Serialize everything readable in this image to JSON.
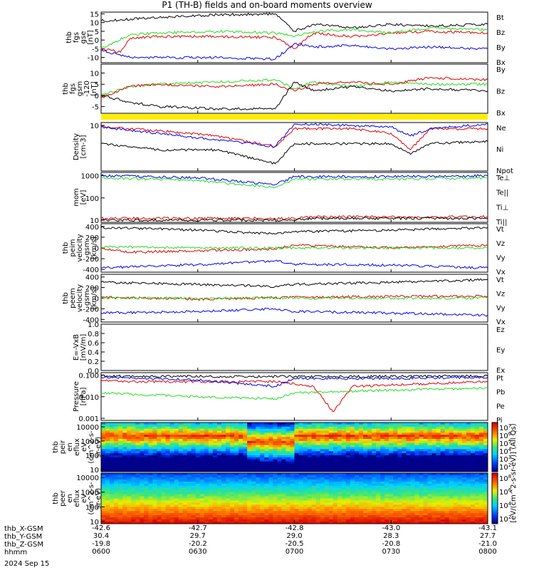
{
  "title": "P1 (TH-B) fields and on-board moments overview",
  "footer": {
    "row_labels": [
      "thb_X-GSM",
      "thb_Y-GSM",
      "thb_Z-GSM",
      "hhmm"
    ],
    "date": "2024 Sep 15",
    "columns": [
      {
        "x": "-42.6",
        "y": "30.4",
        "z": "-19.8",
        "t": "0600"
      },
      {
        "x": "-42.7",
        "y": "29.7",
        "z": "-20.2",
        "t": "0630"
      },
      {
        "x": "-42.8",
        "y": "29.0",
        "z": "-20.5",
        "t": "0700"
      },
      {
        "x": "-43.0",
        "y": "28.3",
        "z": "-20.8",
        "t": "0730"
      },
      {
        "x": "-43.1",
        "y": "27.7",
        "z": "-21.0",
        "t": "0800"
      }
    ]
  },
  "colors": {
    "black": "#000000",
    "red": "#e00000",
    "green": "#22dd22",
    "blue": "#0000ee",
    "yellow": "#ffee00"
  },
  "chart_data": {
    "type": "line",
    "x_range": [
      "0600",
      "0800"
    ],
    "panels": [
      {
        "id": "fgs_gse",
        "ylabel": [
          "thb",
          "fgs",
          "gse",
          "[nT]"
        ],
        "ylim": [
          -13,
          16
        ],
        "yticks": [
          "-10",
          "-5",
          "0",
          "5",
          "10",
          "15"
        ],
        "ytick_values": [
          -10,
          -5,
          0,
          5,
          10,
          15
        ],
        "series": [
          {
            "name": "Bt",
            "color": "black",
            "x": [
              6.0,
              6.3,
              6.6,
              6.9,
              7.0,
              7.1,
              7.3,
              7.5,
              7.7,
              8.0
            ],
            "y": [
              11,
              13,
              14.5,
              15,
              5,
              9,
              7,
              9,
              8,
              9
            ]
          },
          {
            "name": "Bz",
            "color": "red",
            "x": [
              6.0,
              6.1,
              6.15,
              6.3,
              6.6,
              6.9,
              7.0,
              7.1,
              7.3,
              7.5,
              7.7,
              8.0
            ],
            "y": [
              -5,
              -7,
              1,
              2,
              2,
              1.5,
              -5,
              4,
              2,
              4,
              5,
              4
            ]
          },
          {
            "name": "By",
            "color": "green",
            "x": [
              6.0,
              6.15,
              6.3,
              6.6,
              6.9,
              7.0,
              7.1,
              7.3,
              7.5,
              7.7,
              8.0
            ],
            "y": [
              -5,
              3,
              4,
              5,
              4,
              2,
              5,
              6,
              4,
              7,
              6
            ]
          },
          {
            "name": "Bx",
            "color": "blue",
            "x": [
              6.0,
              6.15,
              6.3,
              6.6,
              6.9,
              7.0,
              7.1,
              7.3,
              7.5,
              7.7,
              8.0
            ],
            "y": [
              -6,
              -10,
              -10,
              -10,
              -11,
              -2,
              -4,
              -3,
              -5,
              -4,
              -5
            ]
          }
        ]
      },
      {
        "id": "fgs_gsm",
        "ylabel": [
          "thb",
          "fgs",
          "gsm",
          "-120",
          "[nT]"
        ],
        "ylim": [
          -8,
          14
        ],
        "yticks": [
          "-5",
          "0",
          "5",
          "10"
        ],
        "ytick_values": [
          -5,
          0,
          5,
          10
        ],
        "series": [
          {
            "name": "By",
            "color": "green",
            "x": [
              6.0,
              6.15,
              6.3,
              6.6,
              6.9,
              7.0,
              7.1,
              7.3,
              7.5,
              7.7,
              8.0
            ],
            "y": [
              0,
              4,
              5,
              6,
              7,
              3,
              6,
              4,
              6,
              5,
              5
            ]
          },
          {
            "name": "Bz",
            "color": "red",
            "x": [
              6.0,
              6.15,
              6.3,
              6.6,
              6.9,
              7.0,
              7.1,
              7.3,
              7.5,
              7.7,
              8.0
            ],
            "y": [
              -1,
              4,
              5,
              4,
              5,
              2,
              5,
              6,
              5,
              8,
              7
            ]
          },
          {
            "name": "Bx",
            "color": "black",
            "x": [
              6.0,
              6.15,
              6.3,
              6.6,
              6.9,
              7.0,
              7.1,
              7.3,
              7.5,
              7.7,
              8.0
            ],
            "y": [
              0,
              -3,
              -5,
              -6,
              -6,
              6,
              2,
              4,
              2,
              3,
              2
            ]
          }
        ]
      },
      {
        "id": "density",
        "ylabel": [
          "Density",
          "[cm-3]"
        ],
        "yscale": "log",
        "ylim": [
          0.5,
          12
        ],
        "yticks": [
          "10"
        ],
        "ytick_values": [
          10
        ],
        "series": [
          {
            "name": "Ne",
            "color": "red",
            "x": [
              6.0,
              6.3,
              6.6,
              6.9,
              7.0,
              7.1,
              7.3,
              7.5,
              7.6,
              7.7,
              8.0
            ],
            "y": [
              9,
              7,
              5,
              2.5,
              8,
              8,
              8,
              6,
              2,
              8,
              8
            ]
          },
          {
            "name": "Ni",
            "color": "black",
            "x": [
              6.0,
              6.3,
              6.6,
              6.9,
              7.0,
              7.1,
              7.3,
              7.5,
              7.6,
              7.7,
              8.0
            ],
            "y": [
              3,
              2,
              2,
              0.8,
              3,
              3,
              3,
              3,
              1.5,
              3,
              3.5
            ]
          },
          {
            "name": "Npot",
            "color": "blue",
            "x": [
              6.0,
              6.9,
              7.0,
              7.5,
              7.6,
              7.7,
              8.0
            ],
            "y": [
              9,
              2.5,
              11,
              9,
              5,
              8,
              11
            ]
          }
        ]
      },
      {
        "id": "moms_temp",
        "ylabel": [
          "mom",
          "[eV]"
        ],
        "yscale": "log",
        "ylim": [
          8,
          1400
        ],
        "yticks": [
          "10",
          "100",
          "1000"
        ],
        "ytick_values": [
          10,
          100,
          1000
        ],
        "series": [
          {
            "name": "Te⊥",
            "color": "red",
            "x": [
              6.0,
              7.0,
              7.1,
              8.0
            ],
            "y": [
              12,
              12,
              14,
              14
            ]
          },
          {
            "name": "Te||",
            "color": "black",
            "x": [
              6.0,
              7.0,
              7.1,
              8.0
            ],
            "y": [
              10,
              10,
              12,
              12
            ]
          },
          {
            "name": "Ti⊥",
            "color": "blue",
            "x": [
              6.0,
              6.5,
              6.9,
              7.0,
              7.5,
              8.0
            ],
            "y": [
              1000,
              800,
              400,
              900,
              900,
              1000
            ]
          },
          {
            "name": "Ti||",
            "color": "green",
            "x": [
              6.0,
              6.5,
              6.9,
              7.0,
              7.5,
              8.0
            ],
            "y": [
              800,
              600,
              300,
              700,
              700,
              800
            ]
          }
        ]
      },
      {
        "id": "peim_velocity",
        "ylabel": [
          "thb",
          "peim",
          "velocity",
          "gsm",
          "[km/s]"
        ],
        "ylim": [
          -450,
          450
        ],
        "yticks": [
          "-400",
          "-200",
          "0",
          "200",
          "400"
        ],
        "ytick_values": [
          -400,
          -200,
          0,
          200,
          400
        ],
        "series": [
          {
            "name": "Vt",
            "color": "black",
            "x": [
              6.0,
              6.5,
              6.9,
              7.0,
              7.5,
              8.0
            ],
            "y": [
              380,
              330,
              260,
              300,
              330,
              380
            ]
          },
          {
            "name": "Vz",
            "color": "red",
            "x": [
              6.0,
              6.15,
              6.5,
              6.9,
              7.0,
              7.5,
              8.0
            ],
            "y": [
              0,
              -80,
              -50,
              -20,
              50,
              0,
              50
            ]
          },
          {
            "name": "Vy",
            "color": "green",
            "x": [
              6.0,
              6.5,
              7.0,
              8.0
            ],
            "y": [
              20,
              0,
              0,
              0
            ]
          },
          {
            "name": "Vx",
            "color": "blue",
            "x": [
              6.0,
              6.5,
              6.9,
              7.0,
              7.5,
              8.0
            ],
            "y": [
              -370,
              -310,
              -240,
              -300,
              -320,
              -370
            ]
          }
        ]
      },
      {
        "id": "peem_velocity",
        "ylabel": [
          "thb",
          "peem",
          "velocity",
          "gsm",
          "[km/s]"
        ],
        "ylim": [
          -450,
          450
        ],
        "yticks": [
          "-400",
          "-200",
          "0",
          "200",
          "400"
        ],
        "ytick_values": [
          -400,
          -200,
          0,
          200,
          400
        ],
        "series": [
          {
            "name": "Vt",
            "color": "black",
            "x": [
              6.0,
              6.5,
              6.9,
              7.0,
              7.5,
              8.0
            ],
            "y": [
              300,
              260,
              220,
              260,
              300,
              350
            ]
          },
          {
            "name": "Vz",
            "color": "red",
            "x": [
              6.0,
              6.5,
              7.0,
              8.0
            ],
            "y": [
              20,
              -20,
              20,
              40
            ]
          },
          {
            "name": "Vy",
            "color": "green",
            "x": [
              6.0,
              7.0,
              8.0
            ],
            "y": [
              0,
              0,
              0
            ]
          },
          {
            "name": "Vx",
            "color": "blue",
            "x": [
              6.0,
              6.5,
              6.9,
              7.0,
              7.5,
              8.0
            ],
            "y": [
              -280,
              -250,
              -200,
              -250,
              -280,
              -320
            ]
          }
        ]
      },
      {
        "id": "efield",
        "ylabel": [
          "E=-VxB",
          "[mV/m]"
        ],
        "ylim": [
          0.0,
          1.0
        ],
        "yticks": [
          "0.0",
          "0.2",
          "0.4",
          "0.6",
          "0.8",
          "1.0"
        ],
        "ytick_values": [
          0.0,
          0.2,
          0.4,
          0.6,
          0.8,
          1.0
        ],
        "series": [
          {
            "name": "Ez",
            "color": "red",
            "x": [],
            "y": []
          },
          {
            "name": "Ey",
            "color": "green",
            "x": [],
            "y": []
          },
          {
            "name": "Ex",
            "color": "blue",
            "x": [],
            "y": []
          }
        ]
      },
      {
        "id": "pressure",
        "ylabel": [
          "Pressure",
          "[nPa]"
        ],
        "yscale": "log",
        "ylim": [
          0.0008,
          0.13
        ],
        "yticks": [
          "0.001",
          "0.010",
          "0.100"
        ],
        "ytick_values": [
          0.001,
          0.01,
          0.1
        ],
        "series": [
          {
            "name": "Pt",
            "color": "black",
            "x": [
              6.0,
              7.0,
              8.0
            ],
            "y": [
              0.09,
              0.085,
              0.09
            ]
          },
          {
            "name": "Pb",
            "color": "red",
            "x": [
              6.0,
              6.15,
              6.9,
              7.0,
              7.1,
              7.2,
              7.3,
              8.0
            ],
            "y": [
              0.06,
              0.05,
              0.05,
              0.04,
              0.03,
              0.002,
              0.03,
              0.05
            ]
          },
          {
            "name": "Pe",
            "color": "green",
            "x": [
              6.0,
              6.5,
              6.9,
              7.0,
              7.5,
              8.0
            ],
            "y": [
              0.015,
              0.01,
              0.008,
              0.015,
              0.02,
              0.025
            ]
          },
          {
            "name": "Pi",
            "color": "blue",
            "x": [
              6.0,
              6.5,
              6.9,
              7.0,
              7.5,
              8.0
            ],
            "y": [
              0.08,
              0.06,
              0.03,
              0.07,
              0.07,
              0.08
            ]
          }
        ]
      }
    ],
    "spectrograms": [
      {
        "id": "peir",
        "ylabel": [
          "thb",
          "peir",
          "en",
          "eflux",
          "eV",
          "(cm^2-s-",
          "sr-eV)"
        ],
        "yscale": "log",
        "yticks": [
          "10",
          "100",
          "1000",
          "10000"
        ],
        "ytick_values": [
          10,
          100,
          1000,
          10000
        ],
        "ylim": [
          7,
          20000
        ],
        "colorbar_ticks": [
          "10^7",
          "10^6",
          "10^5",
          "10^4",
          "10^3",
          "10^2"
        ]
      },
      {
        "id": "peer",
        "ylabel": [
          "thb",
          "peer",
          "en",
          "eflux",
          "eV",
          "(cm^2-s-",
          "sr-eV)"
        ],
        "yscale": "log",
        "yticks": [
          "10",
          "100",
          "1000",
          "10000"
        ],
        "ytick_values": [
          10,
          100,
          1000,
          10000
        ],
        "ylim": [
          7,
          20000
        ],
        "colorbar_ticks": [
          "10^8",
          "10^6",
          "10^4",
          "10^2"
        ]
      }
    ],
    "colorbar_label": "[eV/(cm^2-s-sr-eV)] (All Qs)",
    "mode_bar": {
      "color": "yellow"
    }
  }
}
